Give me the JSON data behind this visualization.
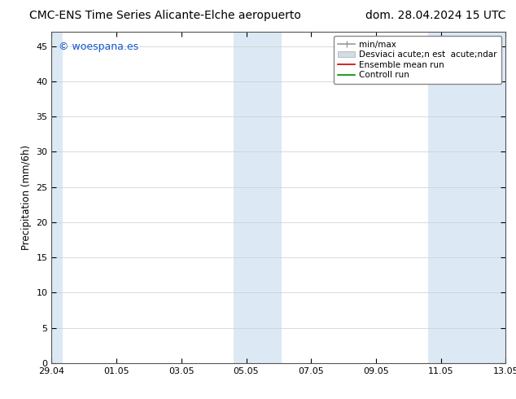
{
  "title_left": "CMC-ENS Time Series Alicante-Elche aeropuerto",
  "title_right": "dom. 28.04.2024 15 UTC",
  "ylabel": "Precipitation (mm/6h)",
  "xticklabels": [
    "29.04",
    "01.05",
    "03.05",
    "05.05",
    "07.05",
    "09.05",
    "11.05",
    "13.05"
  ],
  "xtick_positions": [
    0,
    2,
    4,
    6,
    8,
    10,
    12,
    14
  ],
  "ylim": [
    0,
    47
  ],
  "yticks": [
    0,
    5,
    10,
    15,
    20,
    25,
    30,
    35,
    40,
    45
  ],
  "background_color": "#ffffff",
  "plot_bg_color": "#ffffff",
  "shaded_bands": [
    {
      "x_start": -0.15,
      "x_end": 0.35,
      "color": "#dce9f5"
    },
    {
      "x_start": 5.6,
      "x_end": 7.1,
      "color": "#dce9f5"
    },
    {
      "x_start": 11.6,
      "x_end": 14.2,
      "color": "#dce9f5"
    }
  ],
  "watermark_text": "© woespana.es",
  "watermark_color": "#1155cc",
  "legend_labels": [
    "min/max",
    "Desviaci acute;n est  acute;ndar",
    "Ensemble mean run",
    "Controll run"
  ],
  "legend_colors_line": [
    "#aaaaaa",
    "#bbccdd",
    "#cc0000",
    "#008800"
  ],
  "title_fontsize": 10,
  "tick_fontsize": 8,
  "label_fontsize": 8.5,
  "watermark_fontsize": 9,
  "legend_fontsize": 7.5
}
